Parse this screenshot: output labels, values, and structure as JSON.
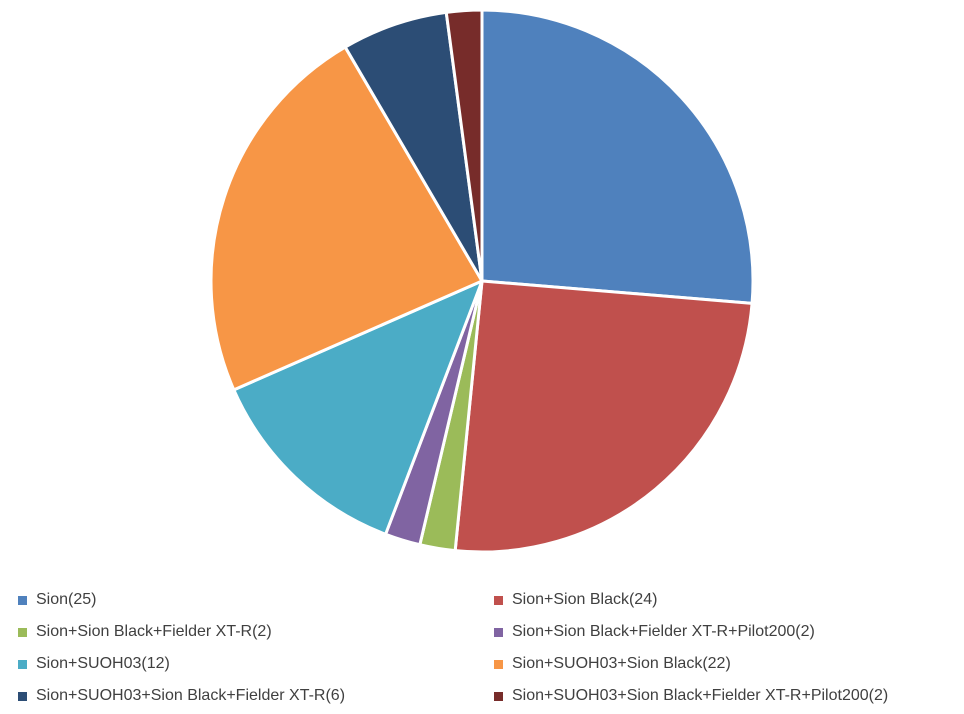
{
  "chart_data": {
    "type": "pie",
    "title": "",
    "start_angle_deg": 0,
    "direction": "clockwise",
    "legend_position": "bottom",
    "legend_columns": 2,
    "slices": [
      {
        "label": "Sion",
        "legend_text": "Sion(25)",
        "value": 25,
        "color": "#4f81bd"
      },
      {
        "label": "Sion+Sion Black",
        "legend_text": "Sion+Sion Black(24)",
        "value": 24,
        "color": "#c0504d"
      },
      {
        "label": "Sion+Sion Black+Fielder XT-R",
        "legend_text": "Sion+Sion Black+Fielder XT-R(2)",
        "value": 2,
        "color": "#9bbb59"
      },
      {
        "label": "Sion+Sion Black+Fielder XT-R+Pilot200",
        "legend_text": "Sion+Sion Black+Fielder XT-R+Pilot200(2)",
        "value": 2,
        "color": "#8064a2"
      },
      {
        "label": "Sion+SUOH03",
        "legend_text": "Sion+SUOH03(12)",
        "value": 12,
        "color": "#4bacc6"
      },
      {
        "label": "Sion+SUOH03+Sion Black",
        "legend_text": "Sion+SUOH03+Sion Black(22)",
        "value": 22,
        "color": "#f79646"
      },
      {
        "label": "Sion+SUOH03+Sion Black+Fielder XT-R",
        "legend_text": "Sion+SUOH03+Sion Black+Fielder XT-R(6)",
        "value": 6,
        "color": "#2c4d75"
      },
      {
        "label": "Sion+SUOH03+Sion Black+Fielder XT-R+Pilot200",
        "legend_text": "Sion+SUOH03+Sion Black+Fielder XT-R+Pilot200(2)",
        "value": 2,
        "color": "#772c2a"
      }
    ]
  }
}
